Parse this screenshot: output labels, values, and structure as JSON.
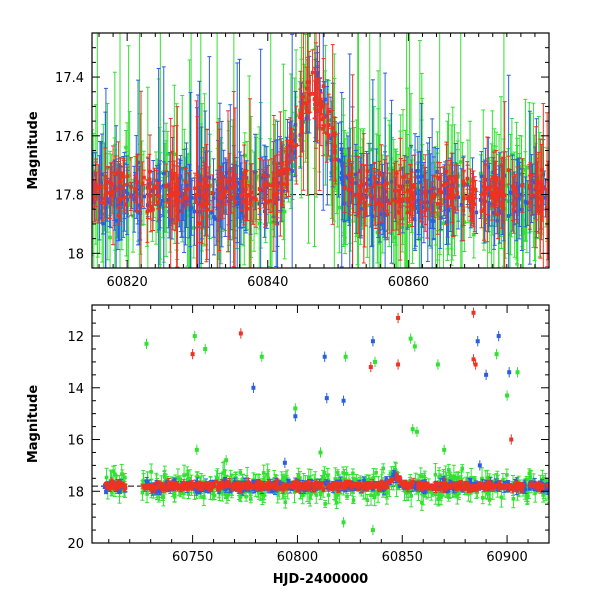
{
  "chart_data": [
    {
      "type": "scatter",
      "title": "",
      "xlabel": "",
      "ylabel": "Magnitude",
      "xlim": [
        60815,
        60880
      ],
      "ylim": [
        18.05,
        17.25
      ],
      "y_inverted": true,
      "xticks": [
        60820,
        60840,
        60860
      ],
      "yticks": [
        17.4,
        17.6,
        17.8,
        18
      ],
      "ytick_labels": [
        "17.4",
        "17.6",
        "17.8",
        "18"
      ],
      "reference_line": 17.8,
      "series": [
        {
          "color": "#2a5fe0",
          "baseline": 17.8,
          "scatter": 0.06,
          "err": 0.08
        },
        {
          "color": "#35e035",
          "baseline": 17.8,
          "scatter": 0.09,
          "err": 0.14
        },
        {
          "color": "#ee3322",
          "baseline": 17.79,
          "scatter": 0.05,
          "err": 0.06
        }
      ],
      "events": [
        {
          "center": 60846.5,
          "peak_mag": 17.45,
          "width_days": 2.2
        }
      ],
      "outliers": []
    },
    {
      "type": "scatter",
      "title": "",
      "xlabel": "HJD-2400000",
      "ylabel": "Magnitude",
      "xlim": [
        60702,
        60920
      ],
      "ylim": [
        20,
        10.8
      ],
      "y_inverted": true,
      "xticks": [
        60750,
        60800,
        60850,
        60900
      ],
      "yticks": [
        12,
        14,
        16,
        18,
        20
      ],
      "ytick_labels": [
        "12",
        "14",
        "16",
        "18",
        "20"
      ],
      "reference_line": 17.8,
      "series": [
        {
          "color": "#2a5fe0",
          "baseline": 17.8,
          "scatter": 0.12,
          "err": 0.1
        },
        {
          "color": "#35e035",
          "baseline": 17.8,
          "scatter": 0.35,
          "err": 0.25
        },
        {
          "color": "#ee3322",
          "baseline": 17.8,
          "scatter": 0.1,
          "err": 0.08
        }
      ],
      "events": [
        {
          "center": 60846.5,
          "peak_mag": 17.4,
          "width_days": 2.2
        }
      ],
      "outliers": [
        {
          "x": 60728,
          "y": 12.3,
          "c": 1
        },
        {
          "x": 60751,
          "y": 12.0,
          "c": 1
        },
        {
          "x": 60750,
          "y": 12.7,
          "c": 2
        },
        {
          "x": 60756,
          "y": 12.5,
          "c": 1
        },
        {
          "x": 60773,
          "y": 11.9,
          "c": 2
        },
        {
          "x": 60779,
          "y": 14.0,
          "c": 0
        },
        {
          "x": 60783,
          "y": 12.8,
          "c": 1
        },
        {
          "x": 60799,
          "y": 15.1,
          "c": 0
        },
        {
          "x": 60799,
          "y": 14.8,
          "c": 1
        },
        {
          "x": 60813,
          "y": 12.8,
          "c": 0
        },
        {
          "x": 60814,
          "y": 14.4,
          "c": 0
        },
        {
          "x": 60822,
          "y": 14.5,
          "c": 0
        },
        {
          "x": 60823,
          "y": 12.8,
          "c": 1
        },
        {
          "x": 60836,
          "y": 12.2,
          "c": 0
        },
        {
          "x": 60835,
          "y": 13.2,
          "c": 2
        },
        {
          "x": 60837,
          "y": 13.0,
          "c": 1
        },
        {
          "x": 60848,
          "y": 11.3,
          "c": 2
        },
        {
          "x": 60848,
          "y": 13.1,
          "c": 2
        },
        {
          "x": 60854,
          "y": 12.1,
          "c": 1
        },
        {
          "x": 60856,
          "y": 12.4,
          "c": 1
        },
        {
          "x": 60855,
          "y": 15.6,
          "c": 1
        },
        {
          "x": 60857,
          "y": 15.7,
          "c": 1
        },
        {
          "x": 60867,
          "y": 13.1,
          "c": 1
        },
        {
          "x": 60884,
          "y": 11.1,
          "c": 2
        },
        {
          "x": 60884,
          "y": 12.9,
          "c": 2
        },
        {
          "x": 60885,
          "y": 13.1,
          "c": 2
        },
        {
          "x": 60886,
          "y": 12.2,
          "c": 0
        },
        {
          "x": 60890,
          "y": 13.5,
          "c": 0
        },
        {
          "x": 60895,
          "y": 12.7,
          "c": 1
        },
        {
          "x": 60896,
          "y": 12.0,
          "c": 0
        },
        {
          "x": 60901,
          "y": 13.4,
          "c": 0
        },
        {
          "x": 60900,
          "y": 14.3,
          "c": 1
        },
        {
          "x": 60905,
          "y": 13.4,
          "c": 1
        },
        {
          "x": 60902,
          "y": 16.0,
          "c": 2
        },
        {
          "x": 60811,
          "y": 16.5,
          "c": 1
        },
        {
          "x": 60766,
          "y": 16.8,
          "c": 1
        },
        {
          "x": 60752,
          "y": 16.4,
          "c": 1
        },
        {
          "x": 60836,
          "y": 19.5,
          "c": 1
        },
        {
          "x": 60822,
          "y": 19.2,
          "c": 1
        },
        {
          "x": 60794,
          "y": 16.9,
          "c": 0
        },
        {
          "x": 60870,
          "y": 16.4,
          "c": 1
        },
        {
          "x": 60887,
          "y": 17.0,
          "c": 0
        }
      ]
    }
  ]
}
